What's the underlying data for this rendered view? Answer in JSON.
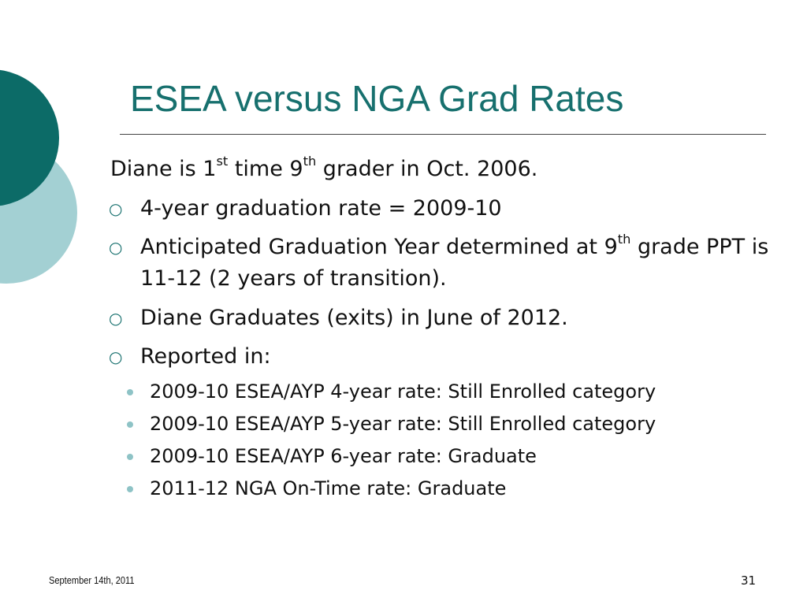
{
  "slide": {
    "title": "ESEA versus NGA Grad Rates",
    "intro": [
      {
        "text": "Diane is 1"
      },
      {
        "text": "st",
        "sup": true
      },
      {
        "text": " time 9"
      },
      {
        "text": "th",
        "sup": true
      },
      {
        "text": " grader in Oct. 2006."
      }
    ],
    "bullets": [
      [
        {
          "text": "4-year graduation rate = 2009-10"
        }
      ],
      [
        {
          "text": "Anticipated Graduation Year determined at 9"
        },
        {
          "text": "th",
          "sup": true
        },
        {
          "text": " grade PPT is 11-12 (2 years of transition)."
        }
      ],
      [
        {
          "text": "Diane Graduates (exits) in June of 2012."
        }
      ],
      [
        {
          "text": "Reported in:"
        }
      ]
    ],
    "sub_bullets": [
      "2009-10 ESEA/AYP 4-year rate: Still Enrolled category",
      "2009-10 ESEA/AYP 5-year rate: Still Enrolled category",
      "2009-10 ESEA/AYP 6-year rate: Graduate",
      "2011-12 NGA On-Time rate: Graduate"
    ],
    "footer_date": "September 14th, 2011",
    "page_number": "31"
  }
}
